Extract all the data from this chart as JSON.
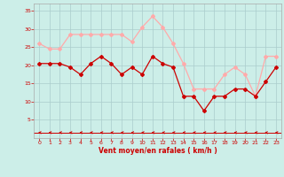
{
  "x": [
    0,
    1,
    2,
    3,
    4,
    5,
    6,
    7,
    8,
    9,
    10,
    11,
    12,
    13,
    14,
    15,
    16,
    17,
    18,
    19,
    20,
    21,
    22,
    23
  ],
  "vent_moyen": [
    20.5,
    20.5,
    20.5,
    19.5,
    17.5,
    20.5,
    22.5,
    20.5,
    17.5,
    19.5,
    17.5,
    22.5,
    20.5,
    19.5,
    11.5,
    11.5,
    7.5,
    11.5,
    11.5,
    13.5,
    13.5,
    11.5,
    15.5,
    19.5
  ],
  "rafales": [
    26.0,
    24.5,
    24.5,
    28.5,
    28.5,
    28.5,
    28.5,
    28.5,
    28.5,
    26.5,
    30.5,
    33.5,
    30.5,
    26.0,
    20.5,
    13.5,
    13.5,
    13.5,
    17.5,
    19.5,
    17.5,
    11.5,
    22.5,
    22.5
  ],
  "wind_dir_y": 1.5,
  "color_moyen": "#cc0000",
  "color_rafales": "#ffaaaa",
  "color_arrows": "#cc0000",
  "bg_color": "#cceee8",
  "grid_color": "#aacccc",
  "xlabel": "Vent moyen/en rafales ( km/h )",
  "ylabel_ticks": [
    5,
    10,
    15,
    20,
    25,
    30,
    35
  ],
  "ylim": [
    0,
    37
  ],
  "xlim": [
    -0.5,
    23.5
  ]
}
